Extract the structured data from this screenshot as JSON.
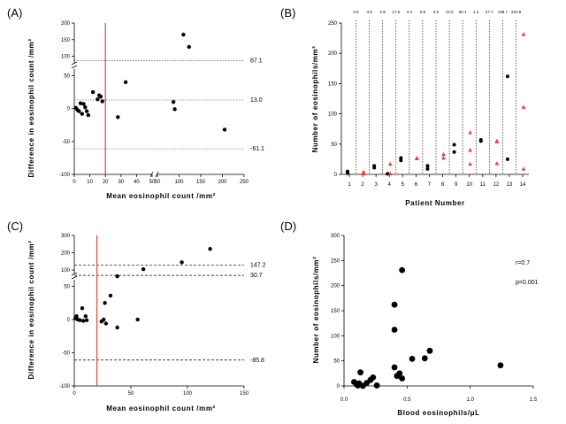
{
  "chart_data": [
    {
      "id": "A",
      "type": "scatter",
      "panel_label": "(A)",
      "xlabel": "Mean eosinophil count /mm²",
      "ylabel": "Difference in eosinophil count /mm²",
      "x_broken": true,
      "x_segments": [
        {
          "min": 0,
          "max": 50,
          "ticks": [
            0,
            10,
            20,
            30,
            40,
            50
          ]
        },
        {
          "min": 50,
          "max": 250,
          "ticks": [
            50,
            100,
            150,
            200,
            250
          ]
        }
      ],
      "y_broken": true,
      "y_segments": [
        {
          "min": -100,
          "max": 60,
          "ticks": [
            -100,
            -50,
            0,
            50
          ]
        },
        {
          "min": 80,
          "max": 200,
          "ticks": [
            100,
            150,
            200
          ]
        }
      ],
      "reference_lines": [
        {
          "y": 87.1,
          "label": "87.1"
        },
        {
          "y": 13.0,
          "label": "13.0"
        },
        {
          "y": -61.1,
          "label": "-61.1"
        }
      ],
      "vertical_line_x": 20,
      "points": [
        {
          "x": 1,
          "y": 1
        },
        {
          "x": 2,
          "y": -2
        },
        {
          "x": 3,
          "y": -4
        },
        {
          "x": 4,
          "y": 8
        },
        {
          "x": 5,
          "y": -8
        },
        {
          "x": 6,
          "y": 7
        },
        {
          "x": 7,
          "y": 2
        },
        {
          "x": 8,
          "y": -4
        },
        {
          "x": 9,
          "y": -10
        },
        {
          "x": 12,
          "y": 25
        },
        {
          "x": 15,
          "y": 14
        },
        {
          "x": 16,
          "y": 20
        },
        {
          "x": 17,
          "y": 18
        },
        {
          "x": 18,
          "y": 11
        },
        {
          "x": 28,
          "y": -13
        },
        {
          "x": 33,
          "y": 40
        },
        {
          "x": 87,
          "y": 10
        },
        {
          "x": 90,
          "y": -1
        },
        {
          "x": 110,
          "y": 165
        },
        {
          "x": 123,
          "y": 128
        },
        {
          "x": 205,
          "y": -32
        }
      ]
    },
    {
      "id": "B",
      "type": "scatter",
      "panel_label": "(B)",
      "xlabel": "Patient Number",
      "ylabel": "Number of eosinophils/mm²",
      "ylim": [
        0,
        250
      ],
      "yticks": [
        0,
        50,
        100,
        150,
        200,
        250
      ],
      "categories": [
        "1",
        "2",
        "3",
        "4",
        "5",
        "6",
        "7",
        "8",
        "9",
        "10",
        "11",
        "12",
        "13",
        "14"
      ],
      "top_annotations": [
        "0.5",
        "4.0",
        "2.9",
        "17.6",
        "4.4",
        "0.8",
        "6.5",
        "12.0",
        "50.1",
        "1.2",
        "27.7",
        "138.7",
        "222.8"
      ],
      "series": [
        {
          "name": "black circles",
          "color": "#000000",
          "points": [
            {
              "x": 1,
              "y": 2
            },
            {
              "x": 1,
              "y": 5
            },
            {
              "x": 3,
              "y": 11
            },
            {
              "x": 3,
              "y": 14
            },
            {
              "x": 4,
              "y": 1
            },
            {
              "x": 5,
              "y": 23
            },
            {
              "x": 5,
              "y": 27
            },
            {
              "x": 7,
              "y": 9
            },
            {
              "x": 7,
              "y": 14
            },
            {
              "x": 9,
              "y": 49
            },
            {
              "x": 9,
              "y": 37
            },
            {
              "x": 11,
              "y": 55
            },
            {
              "x": 11,
              "y": 57
            },
            {
              "x": 13,
              "y": 162
            },
            {
              "x": 13,
              "y": 25
            }
          ]
        },
        {
          "name": "red triangles",
          "color": "#e8413a",
          "points": [
            {
              "x": 2,
              "y": 1
            },
            {
              "x": 2,
              "y": 4
            },
            {
              "x": 4,
              "y": 17
            },
            {
              "x": 4,
              "y": 1
            },
            {
              "x": 6,
              "y": 26
            },
            {
              "x": 6,
              "y": 27
            },
            {
              "x": 8,
              "y": 27
            },
            {
              "x": 8,
              "y": 33
            },
            {
              "x": 10,
              "y": 69
            },
            {
              "x": 10,
              "y": 40
            },
            {
              "x": 10,
              "y": 17
            },
            {
              "x": 12,
              "y": 55
            },
            {
              "x": 12,
              "y": 54
            },
            {
              "x": 12,
              "y": 18
            },
            {
              "x": 14,
              "y": 231
            },
            {
              "x": 14,
              "y": 111
            },
            {
              "x": 14,
              "y": 9
            }
          ]
        }
      ]
    },
    {
      "id": "C",
      "type": "scatter",
      "panel_label": "(C)",
      "xlabel": "Mean eosinophil count /mm²",
      "ylabel": "Difference in eosinophil count /mm²",
      "xlim": [
        0,
        150
      ],
      "xticks": [
        0,
        50,
        100,
        150
      ],
      "y_broken": true,
      "y_segments": [
        {
          "min": -100,
          "max": 60,
          "ticks": [
            -100,
            -50,
            0,
            50
          ]
        },
        {
          "min": 80,
          "max": 300,
          "ticks": [
            100,
            200,
            300
          ]
        }
      ],
      "reference_lines": [
        {
          "y": 147.2,
          "label": "147.2"
        },
        {
          "y": 30.7,
          "label": "30.7"
        },
        {
          "y": -85.8,
          "label": "-85.8"
        }
      ],
      "vertical_line_x": 20,
      "points": [
        {
          "x": 1,
          "y": 2
        },
        {
          "x": 2,
          "y": 5
        },
        {
          "x": 3,
          "y": 0
        },
        {
          "x": 5,
          "y": -1
        },
        {
          "x": 7,
          "y": 17
        },
        {
          "x": 8,
          "y": -2
        },
        {
          "x": 10,
          "y": 5
        },
        {
          "x": 11,
          "y": -1
        },
        {
          "x": 24,
          "y": -3
        },
        {
          "x": 26,
          "y": 0
        },
        {
          "x": 27,
          "y": 25
        },
        {
          "x": 28,
          "y": -6
        },
        {
          "x": 32,
          "y": 36
        },
        {
          "x": 38,
          "y": 64
        },
        {
          "x": 38,
          "y": -12
        },
        {
          "x": 56,
          "y": 0
        },
        {
          "x": 61,
          "y": 105
        },
        {
          "x": 95,
          "y": 145
        },
        {
          "x": 120,
          "y": 222
        }
      ]
    },
    {
      "id": "D",
      "type": "scatter",
      "panel_label": "(D)",
      "xlabel": "Blood eosinophils/μL",
      "ylabel": "Number of eosinophils/mm²",
      "xlim": [
        0,
        1.5
      ],
      "xticks": [
        "0.0",
        "0.5",
        "1.0",
        "1.5"
      ],
      "ylim": [
        0,
        300
      ],
      "yticks": [
        0,
        50,
        100,
        150,
        200,
        250,
        300
      ],
      "annotations": [
        "r=0.7",
        "p=0.001"
      ],
      "points": [
        {
          "x": 0.08,
          "y": 8
        },
        {
          "x": 0.1,
          "y": 3
        },
        {
          "x": 0.11,
          "y": 1
        },
        {
          "x": 0.12,
          "y": 5
        },
        {
          "x": 0.13,
          "y": 27
        },
        {
          "x": 0.15,
          "y": 0
        },
        {
          "x": 0.18,
          "y": 6
        },
        {
          "x": 0.21,
          "y": 12
        },
        {
          "x": 0.23,
          "y": 17
        },
        {
          "x": 0.26,
          "y": 1
        },
        {
          "x": 0.4,
          "y": 162
        },
        {
          "x": 0.4,
          "y": 112
        },
        {
          "x": 0.4,
          "y": 37
        },
        {
          "x": 0.42,
          "y": 20
        },
        {
          "x": 0.44,
          "y": 25
        },
        {
          "x": 0.46,
          "y": 231
        },
        {
          "x": 0.46,
          "y": 15
        },
        {
          "x": 0.54,
          "y": 54
        },
        {
          "x": 0.64,
          "y": 55
        },
        {
          "x": 0.68,
          "y": 70
        },
        {
          "x": 1.24,
          "y": 41
        }
      ]
    }
  ]
}
